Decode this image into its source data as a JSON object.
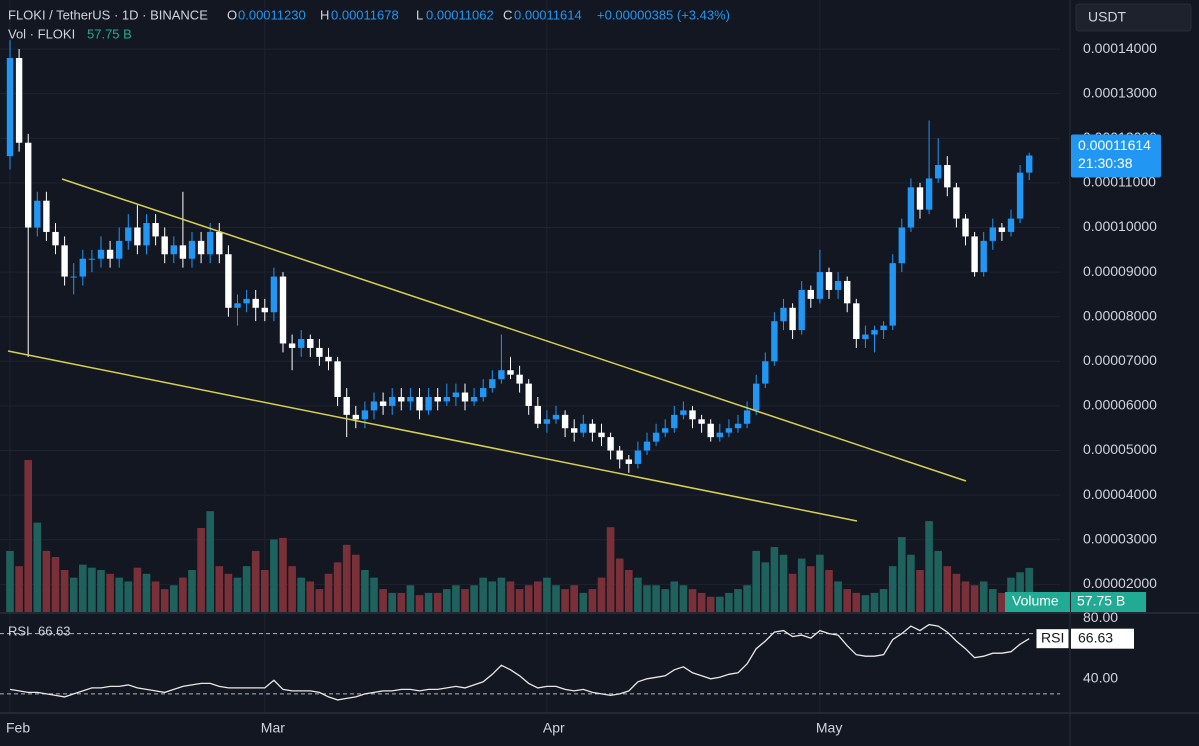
{
  "chart_data": {
    "type": "candlestick",
    "header": {
      "symbol": "FLOKI / TetherUS · 1D · BINANCE",
      "ohlc": [
        {
          "key": "O",
          "value": "0.00011230"
        },
        {
          "key": "H",
          "value": "0.00011678"
        },
        {
          "key": "L",
          "value": "0.00011062"
        },
        {
          "key": "C",
          "value": "0.00011614"
        }
      ],
      "change": "+0.00000385 (+3.43%)",
      "currency": "USDT",
      "countdown": "21:30:38"
    },
    "up_color": "#2196f3",
    "down_color": "#ffffff",
    "grid": true,
    "ylim": [
      1.38e-05,
      0.000151
    ],
    "yticks": [
      {
        "value": 2e-05,
        "label": "0.00002000"
      },
      {
        "value": 3e-05,
        "label": "0.00003000"
      },
      {
        "value": 4e-05,
        "label": "0.00004000"
      },
      {
        "value": 5e-05,
        "label": "0.00005000"
      },
      {
        "value": 6e-05,
        "label": "0.00006000"
      },
      {
        "value": 7e-05,
        "label": "0.00007000"
      },
      {
        "value": 8e-05,
        "label": "0.00008000"
      },
      {
        "value": 9e-05,
        "label": "0.00009000"
      },
      {
        "value": 0.0001,
        "label": "0.00010000"
      },
      {
        "value": 0.00011,
        "label": "0.00011000"
      },
      {
        "value": 0.00012,
        "label": "0.00012000"
      },
      {
        "value": 0.00013,
        "label": "0.00013000"
      },
      {
        "value": 0.00014,
        "label": "0.00014000"
      }
    ],
    "categories": [
      "Feb",
      null,
      null,
      null,
      null,
      null,
      null,
      null,
      null,
      null,
      null,
      null,
      null,
      null,
      null,
      null,
      null,
      null,
      null,
      null,
      null,
      null,
      null,
      null,
      null,
      null,
      null,
      null,
      "Mar",
      null,
      null,
      null,
      null,
      null,
      null,
      null,
      null,
      null,
      null,
      null,
      null,
      null,
      null,
      null,
      null,
      null,
      null,
      null,
      null,
      null,
      null,
      null,
      null,
      null,
      null,
      null,
      null,
      null,
      null,
      "Apr",
      null,
      null,
      null,
      null,
      null,
      null,
      null,
      null,
      null,
      null,
      null,
      null,
      null,
      null,
      null,
      null,
      null,
      null,
      null,
      null,
      null,
      null,
      null,
      null,
      null,
      null,
      null,
      null,
      null,
      "May",
      null,
      null,
      null,
      null,
      null,
      null,
      null,
      null,
      null,
      null,
      null,
      null,
      null,
      null,
      null,
      null,
      null,
      null,
      null,
      null,
      null,
      null,
      null
    ],
    "candles": [
      [
        0.000116,
        0.000142,
        0.000113,
        0.000138
      ],
      [
        0.000138,
        0.00014,
        0.000117,
        0.000119
      ],
      [
        0.000119,
        0.000121,
        7.1e-05,
        0.0001
      ],
      [
        0.0001,
        0.000108,
        9.8e-05,
        0.000106
      ],
      [
        0.000106,
        0.000108,
        9.7e-05,
        9.9e-05
      ],
      [
        9.9e-05,
        0.000101,
        9.4e-05,
        9.6e-05
      ],
      [
        9.6e-05,
        9.8e-05,
        8.7e-05,
        8.9e-05
      ],
      [
        8.9e-05,
        9.2e-05,
        8.5e-05,
        8.9e-05
      ],
      [
        8.9e-05,
        9.5e-05,
        8.7e-05,
        9.3e-05
      ],
      [
        9.3e-05,
        9.5e-05,
        9e-05,
        9.3e-05
      ],
      [
        9.3e-05,
        9.8e-05,
        9.1e-05,
        9.5e-05
      ],
      [
        9.5e-05,
        9.7e-05,
        9.1e-05,
        9.3e-05
      ],
      [
        9.3e-05,
        0.0001,
        9.1e-05,
        9.7e-05
      ],
      [
        9.7e-05,
        0.000103,
        9.5e-05,
        0.0001
      ],
      [
        0.0001,
        0.000105,
        9.4e-05,
        9.6e-05
      ],
      [
        9.6e-05,
        0.000103,
        9.4e-05,
        0.000101
      ],
      [
        0.000101,
        0.000103,
        9.6e-05,
        9.8e-05
      ],
      [
        9.8e-05,
        0.0001,
        9.2e-05,
        9.4e-05
      ],
      [
        9.4e-05,
        9.8e-05,
        9.2e-05,
        9.6e-05
      ],
      [
        9.6e-05,
        0.000108,
        9.1e-05,
        9.3e-05
      ],
      [
        9.3e-05,
        9.9e-05,
        9.1e-05,
        9.7e-05
      ],
      [
        9.7e-05,
        9.9e-05,
        9.2e-05,
        9.4e-05
      ],
      [
        9.4e-05,
        0.000101,
        9.2e-05,
        9.9e-05
      ],
      [
        9.9e-05,
        0.000101,
        9.2e-05,
        9.4e-05
      ],
      [
        9.4e-05,
        9.6e-05,
        8e-05,
        8.2e-05
      ],
      [
        8.2e-05,
        8.5e-05,
        7.8e-05,
        8.3e-05
      ],
      [
        8.3e-05,
        8.6e-05,
        8.1e-05,
        8.4e-05
      ],
      [
        8.4e-05,
        8.6e-05,
        7.9e-05,
        8.2e-05
      ],
      [
        8.2e-05,
        8.4e-05,
        7.9e-05,
        8.1e-05
      ],
      [
        8.1e-05,
        9.1e-05,
        7.9e-05,
        8.9e-05
      ],
      [
        8.9e-05,
        9e-05,
        7.2e-05,
        7.4e-05
      ],
      [
        7.4e-05,
        7.6e-05,
        6.8e-05,
        7.3e-05
      ],
      [
        7.3e-05,
        7.7e-05,
        7.1e-05,
        7.5e-05
      ],
      [
        7.5e-05,
        7.6e-05,
        7.1e-05,
        7.3e-05
      ],
      [
        7.3e-05,
        7.5e-05,
        6.9e-05,
        7.1e-05
      ],
      [
        7.1e-05,
        7.3e-05,
        6.8e-05,
        7e-05
      ],
      [
        7e-05,
        7.1e-05,
        6e-05,
        6.2e-05
      ],
      [
        6.2e-05,
        6.4e-05,
        5.3e-05,
        5.8e-05
      ],
      [
        5.8e-05,
        6e-05,
        5.5e-05,
        5.7e-05
      ],
      [
        5.7e-05,
        6.1e-05,
        5.5e-05,
        5.9e-05
      ],
      [
        5.9e-05,
        6.3e-05,
        5.7e-05,
        6.1e-05
      ],
      [
        6.1e-05,
        6.3e-05,
        5.8e-05,
        6e-05
      ],
      [
        6e-05,
        6.4e-05,
        5.8e-05,
        6.2e-05
      ],
      [
        6.2e-05,
        6.4e-05,
        5.9e-05,
        6.1e-05
      ],
      [
        6.1e-05,
        6.4e-05,
        5.9e-05,
        6.2e-05
      ],
      [
        6.2e-05,
        6.4e-05,
        5.7e-05,
        5.9e-05
      ],
      [
        5.9e-05,
        6.4e-05,
        5.8e-05,
        6.2e-05
      ],
      [
        6.2e-05,
        6.4e-05,
        5.9e-05,
        6.1e-05
      ],
      [
        6.1e-05,
        6.5e-05,
        6e-05,
        6.2e-05
      ],
      [
        6.2e-05,
        6.5e-05,
        6e-05,
        6.3e-05
      ],
      [
        6.3e-05,
        6.5e-05,
        5.9e-05,
        6.1e-05
      ],
      [
        6.1e-05,
        6.4e-05,
        6e-05,
        6.2e-05
      ],
      [
        6.2e-05,
        6.6e-05,
        6.1e-05,
        6.4e-05
      ],
      [
        6.4e-05,
        6.8e-05,
        6.3e-05,
        6.6e-05
      ],
      [
        6.6e-05,
        7.6e-05,
        6.5e-05,
        6.8e-05
      ],
      [
        6.8e-05,
        7.1e-05,
        6.6e-05,
        6.7e-05
      ],
      [
        6.7e-05,
        6.9e-05,
        6.3e-05,
        6.5e-05
      ],
      [
        6.5e-05,
        6.6e-05,
        5.8e-05,
        6e-05
      ],
      [
        6e-05,
        6.2e-05,
        5.5e-05,
        5.6e-05
      ],
      [
        5.6e-05,
        5.9e-05,
        5.4e-05,
        5.7e-05
      ],
      [
        5.7e-05,
        6e-05,
        5.6e-05,
        5.8e-05
      ],
      [
        5.8e-05,
        5.9e-05,
        5.3e-05,
        5.5e-05
      ],
      [
        5.5e-05,
        5.7e-05,
        5.2e-05,
        5.4e-05
      ],
      [
        5.4e-05,
        5.8e-05,
        5.3e-05,
        5.6e-05
      ],
      [
        5.6e-05,
        5.7e-05,
        5.2e-05,
        5.4e-05
      ],
      [
        5.4e-05,
        5.6e-05,
        5.1e-05,
        5.3e-05
      ],
      [
        5.3e-05,
        5.4e-05,
        4.8e-05,
        5e-05
      ],
      [
        5e-05,
        5.1e-05,
        4.6e-05,
        4.8e-05
      ],
      [
        4.8e-05,
        4.9e-05,
        4.5e-05,
        4.7e-05
      ],
      [
        4.7e-05,
        5.2e-05,
        4.6e-05,
        5e-05
      ],
      [
        5e-05,
        5.4e-05,
        4.9e-05,
        5.2e-05
      ],
      [
        5.2e-05,
        5.6e-05,
        5.1e-05,
        5.4e-05
      ],
      [
        5.4e-05,
        5.7e-05,
        5.3e-05,
        5.5e-05
      ],
      [
        5.5e-05,
        6e-05,
        5.4e-05,
        5.8e-05
      ],
      [
        5.8e-05,
        6.1e-05,
        5.7e-05,
        5.9e-05
      ],
      [
        5.9e-05,
        6e-05,
        5.5e-05,
        5.7e-05
      ],
      [
        5.7e-05,
        5.8e-05,
        5.4e-05,
        5.6e-05
      ],
      [
        5.6e-05,
        5.7e-05,
        5.2e-05,
        5.3e-05
      ],
      [
        5.3e-05,
        5.6e-05,
        5.2e-05,
        5.4e-05
      ],
      [
        5.4e-05,
        5.7e-05,
        5.3e-05,
        5.5e-05
      ],
      [
        5.5e-05,
        5.8e-05,
        5.4e-05,
        5.6e-05
      ],
      [
        5.6e-05,
        6.1e-05,
        5.5e-05,
        5.9e-05
      ],
      [
        5.9e-05,
        6.7e-05,
        5.8e-05,
        6.5e-05
      ],
      [
        6.5e-05,
        7.2e-05,
        6.4e-05,
        7e-05
      ],
      [
        7e-05,
        8.1e-05,
        6.9e-05,
        7.9e-05
      ],
      [
        7.9e-05,
        8.4e-05,
        7.7e-05,
        8.2e-05
      ],
      [
        8.2e-05,
        8.3e-05,
        7.5e-05,
        7.7e-05
      ],
      [
        7.7e-05,
        8.8e-05,
        7.6e-05,
        8.6e-05
      ],
      [
        8.6e-05,
        8.7e-05,
        8.2e-05,
        8.4e-05
      ],
      [
        8.4e-05,
        9.5e-05,
        8.3e-05,
        9e-05
      ],
      [
        9e-05,
        9.1e-05,
        8.4e-05,
        8.6e-05
      ],
      [
        8.6e-05,
        9e-05,
        8.4e-05,
        8.8e-05
      ],
      [
        8.8e-05,
        8.9e-05,
        8.1e-05,
        8.3e-05
      ],
      [
        8.3e-05,
        8.4e-05,
        7.3e-05,
        7.5e-05
      ],
      [
        7.5e-05,
        7.8e-05,
        7.3e-05,
        7.6e-05
      ],
      [
        7.6e-05,
        7.8e-05,
        7.2e-05,
        7.7e-05
      ],
      [
        7.7e-05,
        7.9e-05,
        7.5e-05,
        7.8e-05
      ],
      [
        7.8e-05,
        9.4e-05,
        7.7e-05,
        9.2e-05
      ],
      [
        9.2e-05,
        0.000102,
        9e-05,
        0.0001
      ],
      [
        0.0001,
        0.000111,
        9.9e-05,
        0.000109
      ],
      [
        0.000109,
        0.00011,
        0.000102,
        0.000104
      ],
      [
        0.000104,
        0.000124,
        0.000103,
        0.000111
      ],
      [
        0.000111,
        0.00012,
        0.00011,
        0.000114
      ],
      [
        0.000114,
        0.000116,
        0.000107,
        0.000109
      ],
      [
        0.000109,
        0.00011,
        0.0001,
        0.000102
      ],
      [
        0.000102,
        0.000103,
        9.6e-05,
        9.8e-05
      ],
      [
        9.8e-05,
        9.9e-05,
        8.9e-05,
        9e-05
      ],
      [
        9e-05,
        9.9e-05,
        8.9e-05,
        9.7e-05
      ],
      [
        9.7e-05,
        0.000102,
        9.5e-05,
        0.0001
      ],
      [
        0.0001,
        0.000101,
        9.7e-05,
        9.9e-05
      ],
      [
        9.9e-05,
        0.000104,
        9.8e-05,
        0.000102
      ],
      [
        0.000102,
        0.000114,
        0.000101,
        0.0001123
      ],
      [
        0.0001123,
        0.00011678,
        0.00011062,
        0.00011614
      ]
    ],
    "volume": {
      "name": "Vol · FLOKI",
      "label": "Volume",
      "value_label": "57.75 B",
      "up_color": "#1f625d",
      "down_color": "#7a3038",
      "values": [
        80,
        60,
        199,
        117,
        80,
        72,
        55,
        45,
        62,
        58,
        55,
        50,
        45,
        40,
        58,
        50,
        40,
        30,
        35,
        45,
        55,
        110,
        132,
        60,
        50,
        45,
        60,
        80,
        55,
        95,
        97,
        60,
        45,
        40,
        30,
        50,
        65,
        88,
        75,
        55,
        45,
        30,
        25,
        25,
        35,
        22,
        25,
        25,
        30,
        35,
        30,
        35,
        45,
        40,
        45,
        40,
        30,
        35,
        40,
        45,
        35,
        30,
        35,
        25,
        30,
        45,
        111,
        70,
        55,
        45,
        35,
        35,
        30,
        40,
        35,
        30,
        25,
        20,
        20,
        25,
        30,
        35,
        80,
        65,
        85,
        75,
        50,
        70,
        60,
        75,
        55,
        40,
        30,
        25,
        22,
        25,
        30,
        60,
        98,
        75,
        55,
        119,
        80,
        60,
        50,
        40,
        35,
        40,
        30,
        25,
        45,
        52,
        57.75
      ]
    },
    "rsi": {
      "name": "RSI",
      "value_label": "66.63",
      "color": "#e8e8e8",
      "ylim": [
        18,
        83
      ],
      "yticks": [
        {
          "value": 40,
          "label": "40.00"
        },
        {
          "value": 80,
          "label": "80.00"
        }
      ],
      "bands": [
        30,
        70
      ],
      "values": [
        33,
        32,
        31,
        31,
        30,
        29,
        28,
        30,
        32,
        34,
        34,
        35,
        35,
        36,
        34,
        33,
        32,
        31,
        33,
        35,
        36,
        37,
        37,
        35,
        34,
        34,
        34,
        34,
        34,
        39,
        33,
        32,
        32,
        32,
        31,
        28,
        26,
        27,
        28,
        30,
        31,
        32,
        32,
        33,
        33,
        32,
        33,
        33,
        34,
        35,
        34,
        36,
        38,
        43,
        49,
        46,
        42,
        37,
        34,
        35,
        35,
        33,
        32,
        33,
        31,
        30,
        29,
        30,
        32,
        38,
        40,
        41,
        42,
        46,
        48,
        44,
        42,
        40,
        41,
        43,
        44,
        50,
        60,
        65,
        71,
        72,
        68,
        69,
        67,
        72,
        70,
        69,
        62,
        56,
        55,
        55,
        56,
        66,
        70,
        75,
        72,
        76,
        75,
        71,
        65,
        60,
        54,
        55,
        57,
        57,
        58,
        63,
        66.63
      ]
    }
  }
}
